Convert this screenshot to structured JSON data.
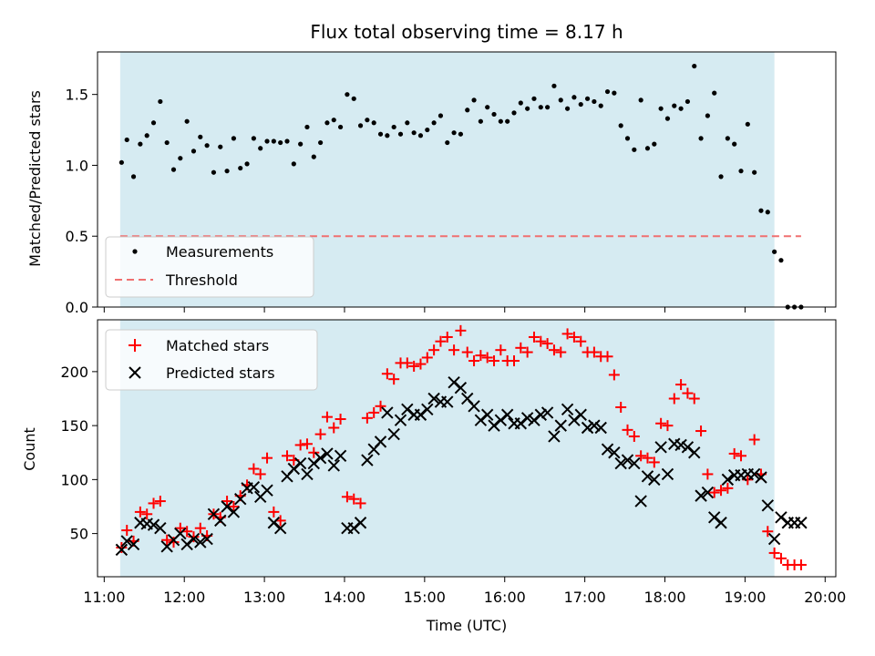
{
  "chart_data": [
    {
      "type": "scatter",
      "title": "Flux total observing time = 8.17 h",
      "xlabel": "",
      "ylabel": "Matched/Predicted stars",
      "xlim": [
        "10:55",
        "20:08"
      ],
      "ylim": [
        0,
        1.8
      ],
      "yticks": [
        0.0,
        0.5,
        1.0,
        1.5
      ],
      "ytick_labels": [
        "0.0",
        "0.5",
        "1.0",
        "1.5"
      ],
      "shaded_region": {
        "x_start": "11:12",
        "x_end": "19:22",
        "color": "#add8e6"
      },
      "threshold": {
        "name": "Threshold",
        "value": 0.5,
        "x_start": "11:12",
        "x_end": "19:42",
        "color": "#f07070"
      },
      "legend": {
        "position": "lower-left",
        "entries": [
          "Measurements",
          "Threshold"
        ]
      },
      "series": [
        {
          "name": "Measurements",
          "color": "#000000",
          "x": [
            "11:13",
            "11:17",
            "11:22",
            "11:27",
            "11:32",
            "11:37",
            "11:42",
            "11:47",
            "11:52",
            "11:57",
            "12:02",
            "12:07",
            "12:12",
            "12:17",
            "12:22",
            "12:27",
            "12:32",
            "12:37",
            "12:42",
            "12:47",
            "12:52",
            "12:57",
            "13:02",
            "13:07",
            "13:12",
            "13:17",
            "13:22",
            "13:27",
            "13:32",
            "13:37",
            "13:42",
            "13:47",
            "13:52",
            "13:57",
            "14:02",
            "14:07",
            "14:12",
            "14:17",
            "14:22",
            "14:27",
            "14:32",
            "14:37",
            "14:42",
            "14:47",
            "14:52",
            "14:57",
            "15:02",
            "15:07",
            "15:12",
            "15:17",
            "15:22",
            "15:27",
            "15:32",
            "15:37",
            "15:42",
            "15:47",
            "15:52",
            "15:57",
            "16:02",
            "16:07",
            "16:12",
            "16:17",
            "16:22",
            "16:27",
            "16:32",
            "16:37",
            "16:42",
            "16:47",
            "16:52",
            "16:57",
            "17:02",
            "17:07",
            "17:12",
            "17:17",
            "17:22",
            "17:27",
            "17:32",
            "17:37",
            "17:42",
            "17:47",
            "17:52",
            "17:57",
            "18:02",
            "18:07",
            "18:12",
            "18:17",
            "18:22",
            "18:27",
            "18:32",
            "18:37",
            "18:42",
            "18:47",
            "18:52",
            "18:57",
            "19:02",
            "19:07",
            "19:12",
            "19:17",
            "19:22",
            "19:27",
            "19:32",
            "19:37",
            "19:42"
          ],
          "y": [
            1.02,
            1.18,
            0.92,
            1.15,
            1.21,
            1.3,
            1.45,
            1.16,
            0.97,
            1.05,
            1.31,
            1.1,
            1.2,
            1.14,
            0.95,
            1.13,
            0.96,
            1.19,
            0.98,
            1.01,
            1.19,
            1.12,
            1.17,
            1.17,
            1.16,
            1.17,
            1.01,
            1.15,
            1.27,
            1.06,
            1.16,
            1.3,
            1.32,
            1.27,
            1.5,
            1.47,
            1.28,
            1.32,
            1.3,
            1.22,
            1.21,
            1.27,
            1.22,
            1.3,
            1.23,
            1.21,
            1.25,
            1.3,
            1.35,
            1.16,
            1.23,
            1.22,
            1.39,
            1.46,
            1.31,
            1.41,
            1.36,
            1.31,
            1.31,
            1.37,
            1.44,
            1.4,
            1.47,
            1.41,
            1.41,
            1.56,
            1.46,
            1.4,
            1.48,
            1.43,
            1.47,
            1.45,
            1.42,
            1.52,
            1.51,
            1.28,
            1.19,
            1.11,
            1.46,
            1.12,
            1.15,
            1.4,
            1.33,
            1.42,
            1.4,
            1.45,
            1.7,
            1.19,
            1.35,
            1.51,
            0.92,
            1.19,
            1.15,
            0.96,
            1.29,
            0.95,
            0.68,
            0.67,
            0.39,
            0.33,
            0.0,
            0.0,
            0.0
          ]
        }
      ]
    },
    {
      "type": "scatter",
      "title": "",
      "xlabel": "Time (UTC)",
      "ylabel": "Count",
      "xlim": [
        "10:55",
        "20:08"
      ],
      "ylim": [
        10,
        248
      ],
      "xticks": [
        "11:00",
        "12:00",
        "13:00",
        "14:00",
        "15:00",
        "16:00",
        "17:00",
        "18:00",
        "19:00",
        "20:00"
      ],
      "yticks": [
        50,
        100,
        150,
        200
      ],
      "ytick_labels": [
        "50",
        "100",
        "150",
        "200"
      ],
      "shaded_region": {
        "x_start": "11:12",
        "x_end": "19:22",
        "color": "#add8e6"
      },
      "legend": {
        "position": "upper-left",
        "entries": [
          "Matched stars",
          "Predicted stars"
        ]
      },
      "series": [
        {
          "name": "Matched stars",
          "marker": "+",
          "color": "#ff0000",
          "x": [
            "11:13",
            "11:17",
            "11:22",
            "11:27",
            "11:32",
            "11:37",
            "11:42",
            "11:47",
            "11:52",
            "11:57",
            "12:02",
            "12:07",
            "12:12",
            "12:17",
            "12:22",
            "12:27",
            "12:32",
            "12:37",
            "12:42",
            "12:47",
            "12:52",
            "12:57",
            "13:02",
            "13:07",
            "13:12",
            "13:17",
            "13:22",
            "13:27",
            "13:32",
            "13:37",
            "13:42",
            "13:47",
            "13:52",
            "13:57",
            "14:02",
            "14:07",
            "14:12",
            "14:17",
            "14:22",
            "14:27",
            "14:32",
            "14:37",
            "14:42",
            "14:47",
            "14:52",
            "14:57",
            "15:02",
            "15:07",
            "15:12",
            "15:17",
            "15:22",
            "15:27",
            "15:32",
            "15:37",
            "15:42",
            "15:47",
            "15:52",
            "15:57",
            "16:02",
            "16:07",
            "16:12",
            "16:17",
            "16:22",
            "16:27",
            "16:32",
            "16:37",
            "16:42",
            "16:47",
            "16:52",
            "16:57",
            "17:02",
            "17:07",
            "17:12",
            "17:17",
            "17:22",
            "17:27",
            "17:32",
            "17:37",
            "17:42",
            "17:47",
            "17:52",
            "17:57",
            "18:02",
            "18:07",
            "18:12",
            "18:17",
            "18:22",
            "18:27",
            "18:32",
            "18:37",
            "18:42",
            "18:47",
            "18:52",
            "18:57",
            "19:02",
            "19:07",
            "19:12",
            "19:17",
            "19:22",
            "19:27",
            "19:32",
            "19:37",
            "19:42"
          ],
          "y": [
            37,
            53,
            43,
            70,
            68,
            78,
            80,
            44,
            42,
            55,
            52,
            47,
            55,
            48,
            68,
            65,
            80,
            75,
            85,
            95,
            110,
            105,
            120,
            70,
            62,
            122,
            118,
            132,
            133,
            125,
            142,
            158,
            148,
            156,
            84,
            82,
            78,
            157,
            162,
            168,
            198,
            193,
            208,
            208,
            205,
            207,
            213,
            220,
            228,
            232,
            220,
            238,
            218,
            210,
            215,
            213,
            210,
            220,
            210,
            210,
            222,
            218,
            232,
            228,
            226,
            220,
            218,
            235,
            232,
            228,
            218,
            218,
            214,
            214,
            197,
            167,
            146,
            140,
            122,
            120,
            116,
            152,
            150,
            175,
            188,
            180,
            175,
            145,
            105,
            88,
            90,
            92,
            124,
            122,
            100,
            137,
            105,
            52,
            32,
            27,
            21,
            21,
            21
          ]
        },
        {
          "name": "Predicted stars",
          "marker": "x",
          "color": "#000000",
          "x": [
            "11:13",
            "11:17",
            "11:22",
            "11:27",
            "11:32",
            "11:37",
            "11:42",
            "11:47",
            "11:52",
            "11:57",
            "12:02",
            "12:07",
            "12:12",
            "12:17",
            "12:22",
            "12:27",
            "12:32",
            "12:37",
            "12:42",
            "12:47",
            "12:52",
            "12:57",
            "13:02",
            "13:07",
            "13:12",
            "13:17",
            "13:22",
            "13:27",
            "13:32",
            "13:37",
            "13:42",
            "13:47",
            "13:52",
            "13:57",
            "14:02",
            "14:07",
            "14:12",
            "14:17",
            "14:22",
            "14:27",
            "14:32",
            "14:37",
            "14:42",
            "14:47",
            "14:52",
            "14:57",
            "15:02",
            "15:07",
            "15:12",
            "15:17",
            "15:22",
            "15:27",
            "15:32",
            "15:37",
            "15:42",
            "15:47",
            "15:52",
            "15:57",
            "16:02",
            "16:07",
            "16:12",
            "16:17",
            "16:22",
            "16:27",
            "16:32",
            "16:37",
            "16:42",
            "16:47",
            "16:52",
            "16:57",
            "17:02",
            "17:07",
            "17:12",
            "17:17",
            "17:22",
            "17:27",
            "17:32",
            "17:37",
            "17:42",
            "17:47",
            "17:52",
            "17:57",
            "18:02",
            "18:07",
            "18:12",
            "18:17",
            "18:22",
            "18:27",
            "18:32",
            "18:37",
            "18:42",
            "18:47",
            "18:52",
            "18:57",
            "19:02",
            "19:07",
            "19:12",
            "19:17",
            "19:22",
            "19:27",
            "19:32",
            "19:37",
            "19:42"
          ],
          "y": [
            35,
            43,
            40,
            60,
            59,
            58,
            55,
            38,
            44,
            50,
            40,
            45,
            42,
            45,
            68,
            62,
            75,
            70,
            82,
            92,
            93,
            84,
            90,
            60,
            55,
            103,
            110,
            115,
            105,
            115,
            120,
            124,
            113,
            122,
            55,
            55,
            60,
            118,
            128,
            135,
            162,
            142,
            155,
            165,
            160,
            160,
            165,
            175,
            172,
            172,
            190,
            185,
            175,
            168,
            155,
            160,
            150,
            155,
            160,
            152,
            152,
            157,
            155,
            160,
            162,
            140,
            150,
            165,
            155,
            160,
            148,
            150,
            148,
            128,
            125,
            115,
            118,
            115,
            80,
            103,
            100,
            130,
            105,
            133,
            132,
            130,
            125,
            85,
            88,
            65,
            60,
            100,
            104,
            104,
            105,
            105,
            102,
            76,
            45,
            65,
            60,
            60,
            60
          ]
        }
      ]
    }
  ]
}
